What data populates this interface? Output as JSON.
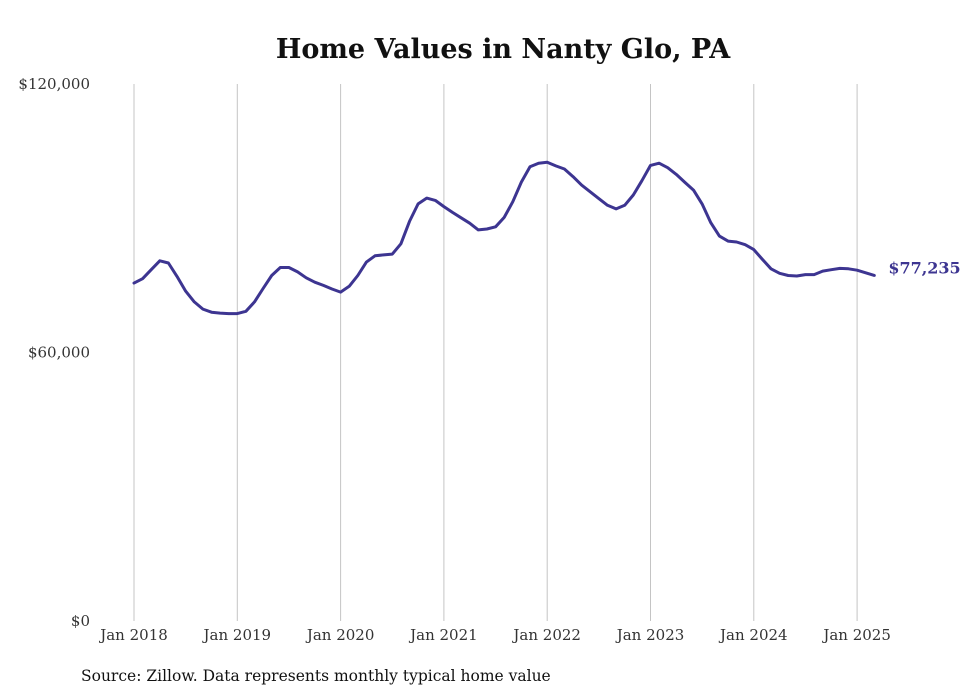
{
  "chart_data": {
    "type": "line",
    "title": "Home Values in Nanty Glo, PA",
    "xlabel": "",
    "ylabel": "",
    "ylim": [
      0,
      120000
    ],
    "y_ticks": [
      {
        "value": 0,
        "label": "$0"
      },
      {
        "value": 60000,
        "label": "$60,000"
      },
      {
        "value": 120000,
        "label": "$120,000"
      }
    ],
    "x_ticks": [
      {
        "year": 2018,
        "label": "Jan 2018"
      },
      {
        "year": 2019,
        "label": "Jan 2019"
      },
      {
        "year": 2020,
        "label": "Jan 2020"
      },
      {
        "year": 2021,
        "label": "Jan 2021"
      },
      {
        "year": 2022,
        "label": "Jan 2022"
      },
      {
        "year": 2023,
        "label": "Jan 2023"
      },
      {
        "year": 2024,
        "label": "Jan 2024"
      },
      {
        "year": 2025,
        "label": "Jan 2025"
      }
    ],
    "grid": "vertical",
    "series": [
      {
        "color": "#3d3591",
        "end_label": "$77,235",
        "x": [
          "2018-01",
          "2018-02",
          "2018-03",
          "2018-04",
          "2018-05",
          "2018-06",
          "2018-07",
          "2018-08",
          "2018-09",
          "2018-10",
          "2018-11",
          "2018-12",
          "2019-01",
          "2019-02",
          "2019-03",
          "2019-04",
          "2019-05",
          "2019-06",
          "2019-07",
          "2019-08",
          "2019-09",
          "2019-10",
          "2019-11",
          "2019-12",
          "2020-01",
          "2020-02",
          "2020-03",
          "2020-04",
          "2020-05",
          "2020-06",
          "2020-07",
          "2020-08",
          "2020-09",
          "2020-10",
          "2020-11",
          "2020-12",
          "2021-01",
          "2021-02",
          "2021-03",
          "2021-04",
          "2021-05",
          "2021-06",
          "2021-07",
          "2021-08",
          "2021-09",
          "2021-10",
          "2021-11",
          "2021-12",
          "2022-01",
          "2022-02",
          "2022-03",
          "2022-04",
          "2022-05",
          "2022-06",
          "2022-07",
          "2022-08",
          "2022-09",
          "2022-10",
          "2022-11",
          "2022-12",
          "2023-01",
          "2023-02",
          "2023-03",
          "2023-04",
          "2023-05",
          "2023-06",
          "2023-07",
          "2023-08",
          "2023-09",
          "2023-10",
          "2023-11",
          "2023-12",
          "2024-01",
          "2024-02",
          "2024-03",
          "2024-04",
          "2024-05",
          "2024-06",
          "2024-07",
          "2024-08",
          "2024-09",
          "2024-10",
          "2024-11",
          "2024-12",
          "2025-01",
          "2025-02",
          "2025-03"
        ],
        "values": [
          75500,
          76500,
          78500,
          80500,
          80000,
          77000,
          73700,
          71300,
          69700,
          69000,
          68800,
          68700,
          68700,
          69200,
          71300,
          74300,
          77200,
          79000,
          79000,
          78000,
          76700,
          75700,
          75000,
          74200,
          73500,
          74800,
          77200,
          80200,
          81600,
          81800,
          82000,
          84300,
          89300,
          93200,
          94500,
          94000,
          92600,
          91300,
          90100,
          88900,
          87400,
          87600,
          88100,
          90200,
          93700,
          98100,
          101500,
          102300,
          102500,
          101700,
          101000,
          99300,
          97400,
          95900,
          94400,
          92900,
          92100,
          92900,
          95200,
          98400,
          101800,
          102300,
          101300,
          99800,
          98000,
          96300,
          93200,
          89000,
          86000,
          84900,
          84700,
          84100,
          83000,
          80800,
          78700,
          77700,
          77200,
          77100,
          77400,
          77400,
          78200,
          78500,
          78800,
          78700,
          78400,
          77800,
          77235
        ]
      }
    ]
  },
  "footer": {
    "source": "Source: Zillow. Data represents monthly typical home value"
  }
}
